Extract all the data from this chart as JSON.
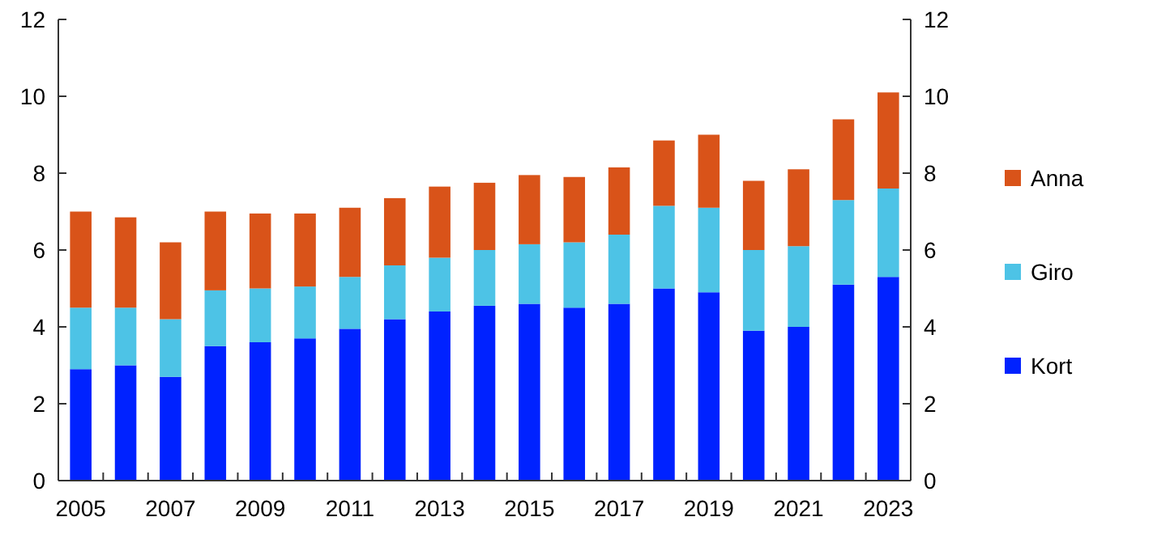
{
  "chart_data": {
    "type": "bar",
    "stacked": true,
    "categories": [
      "2005",
      null,
      "2007",
      null,
      "2009",
      null,
      "2011",
      null,
      "2013",
      null,
      "2015",
      null,
      "2017",
      null,
      "2019",
      null,
      "2021",
      null,
      "2023"
    ],
    "series": [
      {
        "name": "Kort",
        "color": "#0022ff",
        "values": [
          2.9,
          3.0,
          2.7,
          3.5,
          3.6,
          3.7,
          3.95,
          4.2,
          4.4,
          4.55,
          4.6,
          4.5,
          4.6,
          5.0,
          4.9,
          3.9,
          4.0,
          5.1,
          5.3
        ]
      },
      {
        "name": "Giro",
        "color": "#4dc3e6",
        "values": [
          1.6,
          1.5,
          1.5,
          1.45,
          1.4,
          1.35,
          1.35,
          1.4,
          1.4,
          1.45,
          1.55,
          1.7,
          1.8,
          2.15,
          2.2,
          2.1,
          2.1,
          2.2,
          2.3
        ]
      },
      {
        "name": "Anna",
        "color": "#d95319",
        "values": [
          2.5,
          2.35,
          2.0,
          2.05,
          1.95,
          1.9,
          1.8,
          1.75,
          1.85,
          1.75,
          1.8,
          1.7,
          1.75,
          1.7,
          1.9,
          1.8,
          2.0,
          2.1,
          2.5
        ]
      }
    ],
    "ylim": [
      0,
      12
    ],
    "yticks": [
      0,
      2,
      4,
      6,
      8,
      10,
      12
    ],
    "y2lim": [
      0,
      12
    ],
    "y2ticks": [
      0,
      2,
      4,
      6,
      8,
      10,
      12
    ],
    "grid": false,
    "legend": "right"
  }
}
